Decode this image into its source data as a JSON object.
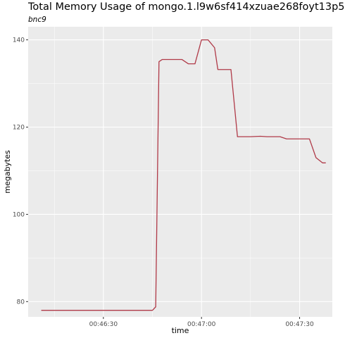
{
  "chart_data": {
    "type": "line",
    "title": "Total Memory Usage of mongo.1.l9w6sf414xzuae268foyt13p5",
    "subtitle": "bnc9",
    "xlabel": "time",
    "ylabel": "megabytes",
    "x_ticks": [
      "00:46:30",
      "00:47:00",
      "00:47:30"
    ],
    "y_ticks": [
      80,
      100,
      120,
      140
    ],
    "series_color": "#b03a48",
    "grid": true,
    "xlim": [
      "00:46:07",
      "00:47:40"
    ],
    "ylim": [
      76.5,
      143
    ],
    "x": [
      "00:46:11",
      "00:46:15",
      "00:46:20",
      "00:46:25",
      "00:46:30",
      "00:46:35",
      "00:46:40",
      "00:46:45",
      "00:46:46",
      "00:46:47",
      "00:46:48",
      "00:46:50",
      "00:46:54",
      "00:46:56",
      "00:46:58",
      "00:47:00",
      "00:47:02",
      "00:47:04",
      "00:47:05",
      "00:47:07",
      "00:47:09",
      "00:47:11",
      "00:47:15",
      "00:47:18",
      "00:47:20",
      "00:47:24",
      "00:47:26",
      "00:47:30",
      "00:47:33",
      "00:47:35",
      "00:47:37",
      "00:47:38"
    ],
    "y": [
      78,
      78,
      78,
      78,
      78,
      78,
      78,
      78,
      78.8,
      135,
      135.5,
      135.5,
      135.5,
      134.5,
      134.5,
      140,
      140,
      138.2,
      133.2,
      133.2,
      133.2,
      117.8,
      117.8,
      117.9,
      117.8,
      117.8,
      117.3,
      117.3,
      117.3,
      113,
      111.8,
      111.8
    ]
  }
}
